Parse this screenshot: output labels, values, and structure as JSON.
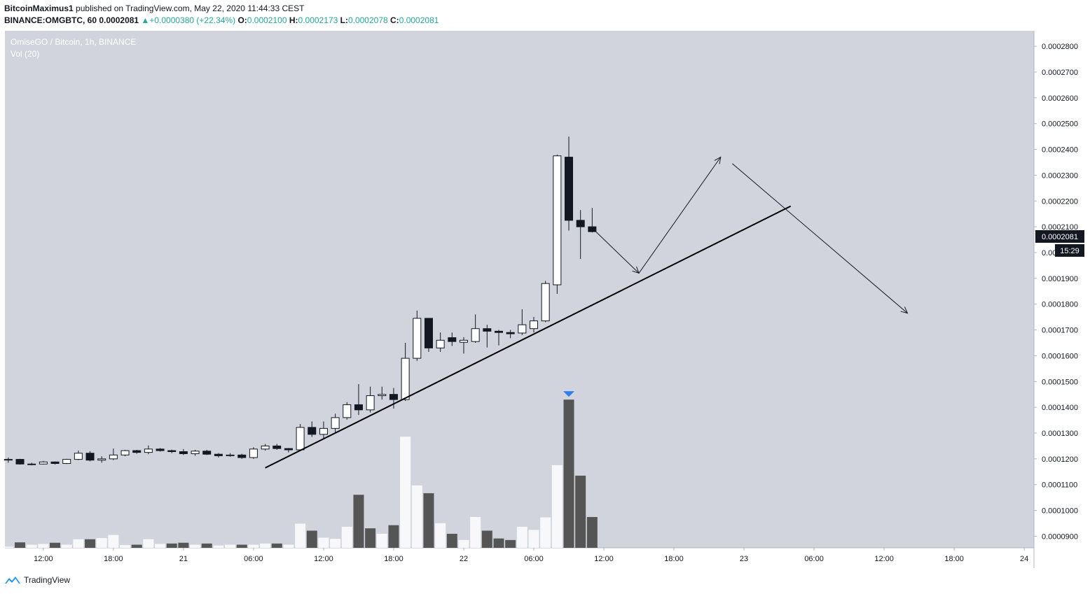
{
  "header": {
    "author": "BitcoinMaximus1",
    "published_text": "published on TradingView.com, May 22, 2020 11:44:33 CEST",
    "symbol": "BINANCE:OMGBTC, 60",
    "last_price": "0.0002081",
    "change_symbol": "▲",
    "change": "+0.0000380 (+22.34%)",
    "o_label": "O:",
    "o_value": "0.0002100",
    "h_label": "H:",
    "h_value": "0.0002173",
    "l_label": "L:",
    "l_value": "0.0002078",
    "c_label": "C:",
    "c_value": "0.0002081"
  },
  "footer": {
    "brand": "TradingView"
  },
  "colors": {
    "plot_bg": "#d1d4dc",
    "up_candle": "#ffffff",
    "down_candle": "#131722",
    "up_volume": "#f8f8fa",
    "down_volume": "#555555",
    "price_label_bg": "#131722",
    "volume_marker": "#2962ff"
  },
  "chart_data": {
    "type": "candlestick",
    "title": "OmiseGO / Bitcoin, 1h, BINANCE",
    "indicator": "Vol (20)",
    "ylim": [
      8.55e-05,
      0.000286
    ],
    "y_ticks": [
      "0.0000900",
      "0.0001000",
      "0.0001100",
      "0.0001200",
      "0.0001300",
      "0.0001400",
      "0.0001500",
      "0.0001600",
      "0.0001700",
      "0.0001800",
      "0.0001900",
      "0.0002000",
      "0.0002100",
      "0.0002200",
      "0.0002300",
      "0.0002400",
      "0.0002500",
      "0.0002600",
      "0.0002700",
      "0.0002800"
    ],
    "x_tick_labels": [
      "12:00",
      "18:00",
      "21",
      "06:00",
      "12:00",
      "18:00",
      "22",
      "06:00",
      "12:00",
      "18:00",
      "23",
      "06:00",
      "12:00",
      "18:00",
      "24"
    ],
    "x_tick_hours": [
      -42,
      -36,
      -30,
      -24,
      -18,
      -12,
      -6,
      0,
      6,
      12,
      18,
      24,
      30,
      36,
      42
    ],
    "current_price_label": "0.0002081",
    "countdown_label": "15:29",
    "candles": [
      {
        "t": -45,
        "o": 1.195,
        "h": 1.205,
        "l": 1.185,
        "c": 1.198
      },
      {
        "t": -44,
        "o": 1.198,
        "h": 1.2,
        "l": 1.178,
        "c": 1.18
      },
      {
        "t": -43,
        "o": 1.18,
        "h": 1.185,
        "l": 1.175,
        "c": 1.18
      },
      {
        "t": -42,
        "o": 1.18,
        "h": 1.192,
        "l": 1.178,
        "c": 1.188
      },
      {
        "t": -41,
        "o": 1.188,
        "h": 1.19,
        "l": 1.178,
        "c": 1.182
      },
      {
        "t": -40,
        "o": 1.182,
        "h": 1.2,
        "l": 1.18,
        "c": 1.198
      },
      {
        "t": -39,
        "o": 1.198,
        "h": 1.232,
        "l": 1.195,
        "c": 1.222
      },
      {
        "t": -38,
        "o": 1.222,
        "h": 1.23,
        "l": 1.19,
        "c": 1.195
      },
      {
        "t": -37,
        "o": 1.195,
        "h": 1.21,
        "l": 1.185,
        "c": 1.2
      },
      {
        "t": -36,
        "o": 1.2,
        "h": 1.24,
        "l": 1.195,
        "c": 1.215
      },
      {
        "t": -35,
        "o": 1.215,
        "h": 1.235,
        "l": 1.21,
        "c": 1.232
      },
      {
        "t": -34,
        "o": 1.232,
        "h": 1.235,
        "l": 1.22,
        "c": 1.225
      },
      {
        "t": -33,
        "o": 1.225,
        "h": 1.252,
        "l": 1.218,
        "c": 1.238
      },
      {
        "t": -32,
        "o": 1.238,
        "h": 1.242,
        "l": 1.228,
        "c": 1.232
      },
      {
        "t": -31,
        "o": 1.232,
        "h": 1.236,
        "l": 1.222,
        "c": 1.228
      },
      {
        "t": -30,
        "o": 1.228,
        "h": 1.238,
        "l": 1.215,
        "c": 1.22
      },
      {
        "t": -29,
        "o": 1.22,
        "h": 1.235,
        "l": 1.212,
        "c": 1.23
      },
      {
        "t": -28,
        "o": 1.23,
        "h": 1.235,
        "l": 1.215,
        "c": 1.218
      },
      {
        "t": -27,
        "o": 1.218,
        "h": 1.222,
        "l": 1.205,
        "c": 1.212
      },
      {
        "t": -26,
        "o": 1.212,
        "h": 1.222,
        "l": 1.208,
        "c": 1.215
      },
      {
        "t": -25,
        "o": 1.215,
        "h": 1.22,
        "l": 1.2,
        "c": 1.205
      },
      {
        "t": -24,
        "o": 1.205,
        "h": 1.245,
        "l": 1.2,
        "c": 1.238
      },
      {
        "t": -23,
        "o": 1.238,
        "h": 1.258,
        "l": 1.232,
        "c": 1.25
      },
      {
        "t": -22,
        "o": 1.25,
        "h": 1.258,
        "l": 1.235,
        "c": 1.24
      },
      {
        "t": -21,
        "o": 1.24,
        "h": 1.242,
        "l": 1.225,
        "c": 1.235
      },
      {
        "t": -20,
        "o": 1.235,
        "h": 1.335,
        "l": 1.23,
        "c": 1.322
      },
      {
        "t": -19,
        "o": 1.322,
        "h": 1.345,
        "l": 1.285,
        "c": 1.295
      },
      {
        "t": -18,
        "o": 1.295,
        "h": 1.345,
        "l": 1.28,
        "c": 1.318
      },
      {
        "t": -17,
        "o": 1.318,
        "h": 1.375,
        "l": 1.3,
        "c": 1.36
      },
      {
        "t": -16,
        "o": 1.36,
        "h": 1.42,
        "l": 1.352,
        "c": 1.41
      },
      {
        "t": -15,
        "o": 1.41,
        "h": 1.49,
        "l": 1.37,
        "c": 1.39
      },
      {
        "t": -14,
        "o": 1.39,
        "h": 1.48,
        "l": 1.38,
        "c": 1.445
      },
      {
        "t": -13,
        "o": 1.445,
        "h": 1.48,
        "l": 1.43,
        "c": 1.45
      },
      {
        "t": -12,
        "o": 1.45,
        "h": 1.475,
        "l": 1.395,
        "c": 1.43
      },
      {
        "t": -11,
        "o": 1.43,
        "h": 1.65,
        "l": 1.425,
        "c": 1.59
      },
      {
        "t": -10,
        "o": 1.59,
        "h": 1.775,
        "l": 1.58,
        "c": 1.745
      },
      {
        "t": -9,
        "o": 1.745,
        "h": 1.745,
        "l": 1.615,
        "c": 1.63
      },
      {
        "t": -8,
        "o": 1.63,
        "h": 1.69,
        "l": 1.615,
        "c": 1.66
      },
      {
        "t": -7,
        "o": 1.67,
        "h": 1.69,
        "l": 1.638,
        "c": 1.655
      },
      {
        "t": -6,
        "o": 1.652,
        "h": 1.672,
        "l": 1.608,
        "c": 1.66
      },
      {
        "t": -5,
        "o": 1.655,
        "h": 1.76,
        "l": 1.65,
        "c": 1.705
      },
      {
        "t": -4,
        "o": 1.705,
        "h": 1.72,
        "l": 1.632,
        "c": 1.695
      },
      {
        "t": -3,
        "o": 1.695,
        "h": 1.7,
        "l": 1.64,
        "c": 1.69
      },
      {
        "t": -2,
        "o": 1.69,
        "h": 1.7,
        "l": 1.668,
        "c": 1.685
      },
      {
        "t": -1,
        "o": 1.688,
        "h": 1.78,
        "l": 1.68,
        "c": 1.72
      },
      {
        "t": 0,
        "o": 1.705,
        "h": 1.75,
        "l": 1.69,
        "c": 1.735
      },
      {
        "t": 1,
        "o": 1.735,
        "h": 1.89,
        "l": 1.73,
        "c": 1.88
      },
      {
        "t": 2,
        "o": 1.875,
        "h": 2.38,
        "l": 1.84,
        "c": 2.375
      },
      {
        "t": 3,
        "o": 2.37,
        "h": 2.45,
        "l": 2.085,
        "c": 2.125
      },
      {
        "t": 4,
        "o": 2.125,
        "h": 2.165,
        "l": 1.975,
        "c": 2.1
      },
      {
        "t": 5,
        "o": 2.1,
        "h": 2.173,
        "l": 2.078,
        "c": 2.081
      }
    ],
    "volume": [
      {
        "t": -45,
        "v": 0.03,
        "up": true
      },
      {
        "t": -44,
        "v": 0.14,
        "up": false
      },
      {
        "t": -43,
        "v": 0.08,
        "up": true
      },
      {
        "t": -42,
        "v": 0.1,
        "up": true
      },
      {
        "t": -41,
        "v": 0.13,
        "up": false
      },
      {
        "t": -40,
        "v": 0.08,
        "up": true
      },
      {
        "t": -39,
        "v": 0.22,
        "up": true
      },
      {
        "t": -38,
        "v": 0.22,
        "up": false
      },
      {
        "t": -37,
        "v": 0.25,
        "up": true
      },
      {
        "t": -36,
        "v": 0.33,
        "up": true
      },
      {
        "t": -35,
        "v": 0.07,
        "up": true
      },
      {
        "t": -34,
        "v": 0.08,
        "up": false
      },
      {
        "t": -33,
        "v": 0.22,
        "up": true
      },
      {
        "t": -32,
        "v": 0.1,
        "up": true
      },
      {
        "t": -31,
        "v": 0.11,
        "up": false
      },
      {
        "t": -30,
        "v": 0.13,
        "up": false
      },
      {
        "t": -29,
        "v": 0.08,
        "up": true
      },
      {
        "t": -28,
        "v": 0.11,
        "up": false
      },
      {
        "t": -27,
        "v": 0.06,
        "up": true
      },
      {
        "t": -26,
        "v": 0.08,
        "up": true
      },
      {
        "t": -25,
        "v": 0.08,
        "up": false
      },
      {
        "t": -24,
        "v": 0.08,
        "up": true
      },
      {
        "t": -23,
        "v": 0.11,
        "up": true
      },
      {
        "t": -22,
        "v": 0.11,
        "up": false
      },
      {
        "t": -21,
        "v": 0.08,
        "up": true
      },
      {
        "t": -20,
        "v": 0.62,
        "up": true
      },
      {
        "t": -19,
        "v": 0.44,
        "up": false
      },
      {
        "t": -18,
        "v": 0.26,
        "up": true
      },
      {
        "t": -17,
        "v": 0.23,
        "up": true
      },
      {
        "t": -16,
        "v": 0.54,
        "up": true
      },
      {
        "t": -15,
        "v": 1.36,
        "up": false
      },
      {
        "t": -14,
        "v": 0.5,
        "up": false
      },
      {
        "t": -13,
        "v": 0.36,
        "up": true
      },
      {
        "t": -12,
        "v": 0.58,
        "up": false
      },
      {
        "t": -11,
        "v": 2.85,
        "up": true
      },
      {
        "t": -10,
        "v": 1.6,
        "up": true
      },
      {
        "t": -9,
        "v": 1.4,
        "up": false
      },
      {
        "t": -8,
        "v": 0.63,
        "up": true
      },
      {
        "t": -7,
        "v": 0.36,
        "up": false
      },
      {
        "t": -6,
        "v": 0.2,
        "up": true
      },
      {
        "t": -5,
        "v": 0.79,
        "up": true
      },
      {
        "t": -4,
        "v": 0.44,
        "up": false
      },
      {
        "t": -3,
        "v": 0.24,
        "up": false
      },
      {
        "t": -2,
        "v": 0.2,
        "up": false
      },
      {
        "t": -1,
        "v": 0.54,
        "up": true
      },
      {
        "t": 0,
        "v": 0.46,
        "up": true
      },
      {
        "t": 1,
        "v": 0.78,
        "up": true
      },
      {
        "t": 2,
        "v": 2.12,
        "up": true
      },
      {
        "t": 3,
        "v": 3.8,
        "up": false
      },
      {
        "t": 4,
        "v": 1.85,
        "up": false
      },
      {
        "t": 5,
        "v": 0.79,
        "up": false
      }
    ],
    "volume_max": 4.0,
    "trendline": {
      "t1": -23,
      "p1": 1.165,
      "t2": 22,
      "p2": 2.18
    },
    "projection_path": [
      {
        "t": 5,
        "p": 2.095
      },
      {
        "t": 9,
        "p": 1.92
      },
      {
        "t": 16,
        "p": 2.37
      }
    ],
    "projection_path_2": [
      {
        "t": 17,
        "p": 2.345
      },
      {
        "t": 32,
        "p": 1.765
      }
    ]
  }
}
